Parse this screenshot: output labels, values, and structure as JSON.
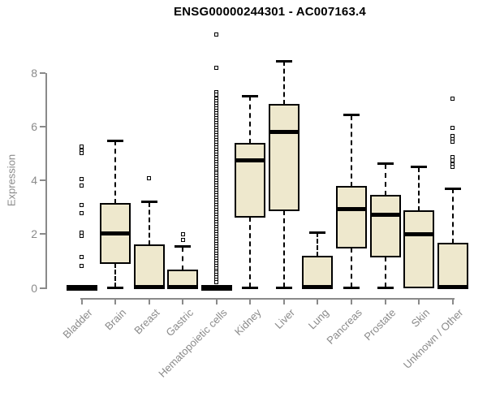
{
  "chart_data": {
    "type": "boxplot",
    "title": "ENSG00000244301 - AC007163.4",
    "ylabel": "Expression",
    "xlabel": "",
    "yticks": [
      0,
      2,
      4,
      6,
      8
    ],
    "ylim": [
      0,
      9.6
    ],
    "grid": false,
    "legend": "none",
    "colors": {
      "box_fill": "#EEE8CD",
      "box_border": "#000000",
      "median": "#000000",
      "axis": "#8a8a8a",
      "tick_label": "#8a8a8a",
      "title": "#000000"
    },
    "categories": [
      {
        "label": "Bladder",
        "q1": 0,
        "median": 0,
        "q3": 0,
        "whisker_low": 0,
        "whisker_high": 0,
        "outliers": [
          5.25,
          5.12,
          5.02,
          4.05,
          3.8,
          3.1,
          2.77,
          2.05,
          1.93,
          1.15,
          0.82
        ]
      },
      {
        "label": "Brain",
        "q1": 0.92,
        "median": 2.02,
        "q3": 3.13,
        "whisker_low": 0,
        "whisker_high": 5.48,
        "outliers": []
      },
      {
        "label": "Breast",
        "q1": 0,
        "median": 0.04,
        "q3": 1.6,
        "whisker_low": 0,
        "whisker_high": 3.2,
        "outliers": [
          4.08
        ]
      },
      {
        "label": "Gastric",
        "q1": 0,
        "median": 0.04,
        "q3": 0.65,
        "whisker_low": 0,
        "whisker_high": 1.53,
        "outliers": [
          2.0,
          1.78
        ]
      },
      {
        "label": "Hematopoietic cells",
        "q1": 0,
        "median": 0,
        "q3": 0,
        "whisker_low": 0,
        "whisker_high": 0,
        "outliers": [
          9.45,
          8.2,
          7.3,
          7.2,
          7.04,
          6.95,
          6.86,
          6.77,
          6.68,
          6.59,
          6.5,
          6.41,
          6.32,
          6.23,
          6.14,
          6.05,
          5.96,
          5.87,
          5.78,
          5.69,
          5.6,
          5.51,
          5.42,
          5.33,
          5.24,
          5.15,
          5.06,
          4.97,
          4.88,
          4.79,
          4.7,
          4.61,
          4.52,
          4.43,
          4.34,
          4.25,
          4.16,
          4.07,
          3.98,
          3.89,
          3.8,
          3.71,
          3.62,
          3.53,
          3.44,
          3.35,
          3.26,
          3.17,
          3.08,
          2.99,
          2.9,
          2.81,
          2.72,
          2.63,
          2.54,
          2.45,
          2.36,
          2.27,
          2.18,
          2.09,
          2.0,
          1.91,
          1.82,
          1.73,
          1.64,
          1.55,
          1.46,
          1.37,
          1.28,
          1.19,
          1.1,
          1.01,
          0.92,
          0.83,
          0.74,
          0.65,
          0.56,
          0.47,
          0.38,
          0.29,
          0.2
        ]
      },
      {
        "label": "Kidney",
        "q1": 2.66,
        "median": 4.74,
        "q3": 5.38,
        "whisker_low": 0,
        "whisker_high": 7.15,
        "outliers": []
      },
      {
        "label": "Liver",
        "q1": 2.89,
        "median": 5.82,
        "q3": 6.82,
        "whisker_low": 0,
        "whisker_high": 8.45,
        "outliers": []
      },
      {
        "label": "Lung",
        "q1": 0,
        "median": 0.04,
        "q3": 1.17,
        "whisker_low": 0,
        "whisker_high": 2.07,
        "outliers": []
      },
      {
        "label": "Pancreas",
        "q1": 1.49,
        "median": 2.93,
        "q3": 3.78,
        "whisker_low": 0,
        "whisker_high": 6.43,
        "outliers": []
      },
      {
        "label": "Prostate",
        "q1": 1.16,
        "median": 2.72,
        "q3": 3.44,
        "whisker_low": 0,
        "whisker_high": 4.62,
        "outliers": []
      },
      {
        "label": "Skin",
        "q1": 0,
        "median": 2.0,
        "q3": 2.85,
        "whisker_low": 0,
        "whisker_high": 4.5,
        "outliers": []
      },
      {
        "label": "Unknown / Other",
        "q1": 0,
        "median": 0.04,
        "q3": 1.66,
        "whisker_low": 0,
        "whisker_high": 3.7,
        "outliers": [
          7.05,
          5.95,
          5.65,
          5.55,
          5.45,
          4.87,
          4.75,
          4.6,
          4.5
        ]
      }
    ]
  }
}
